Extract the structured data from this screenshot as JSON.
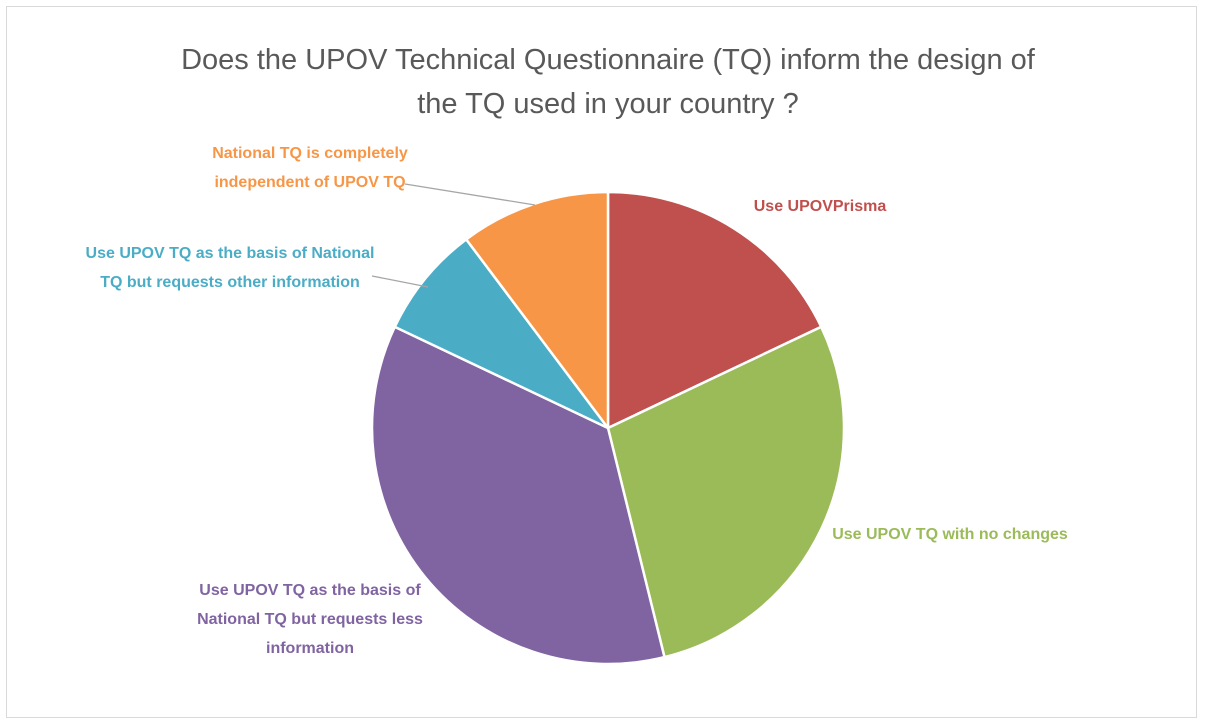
{
  "chart_data": {
    "type": "pie",
    "title": "Does the UPOV Technical Questionnaire (TQ) inform the design of the TQ used in your country ?",
    "categories": [
      "Use UPOVPrisma",
      "Use UPOV TQ with no changes",
      "Use UPOV TQ as the basis of National TQ but requests less information",
      "Use UPOV TQ as the basis of National TQ but requests other information",
      "National TQ is completely independent of UPOV TQ"
    ],
    "values": [
      7,
      11,
      14,
      3,
      4
    ],
    "colors": [
      "#c0504d",
      "#9bbb59",
      "#8064a2",
      "#4bacc6",
      "#f79646"
    ]
  }
}
